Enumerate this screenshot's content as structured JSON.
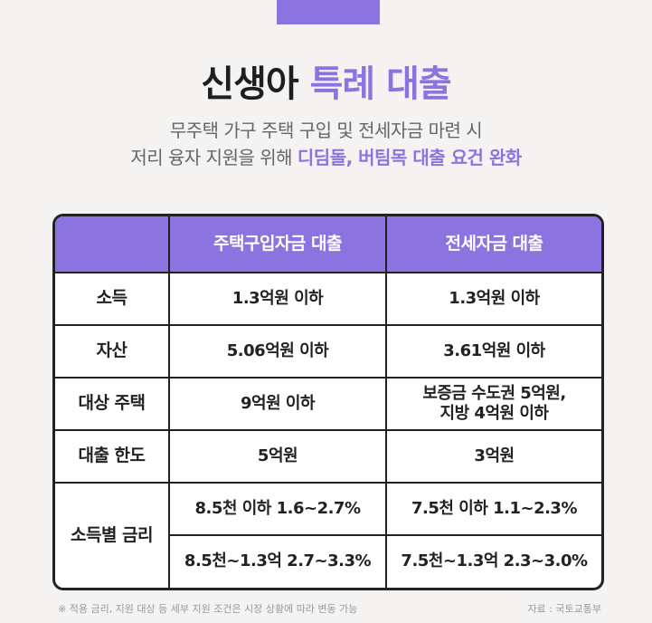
{
  "title": {
    "main": "신생아 ",
    "accent": "특례 대출"
  },
  "subtitle": {
    "line1": "무주택 가구 주택 구입 및 전세자금 마련 시",
    "line2_plain": "저리 융자 지원을 위해 ",
    "line2_accent": "디딤돌, 버팀목 대출 요건 완화"
  },
  "table": {
    "headers": [
      "",
      "주택구입자금 대출",
      "전세자금 대출"
    ],
    "rows": [
      {
        "label": "소득",
        "purchase": "1.3억원 이하",
        "jeonse": "1.3억원 이하"
      },
      {
        "label": "자산",
        "purchase": "5.06억원 이하",
        "jeonse": "3.61억원 이하"
      },
      {
        "label": "대상 주택",
        "purchase": "9억원 이하",
        "jeonse": "보증금 수도권 5억원,\n지방 4억원 이하"
      },
      {
        "label": "대출 한도",
        "purchase": "5억원",
        "jeonse": "3억원"
      }
    ],
    "rate": {
      "label": "소득별 금리",
      "purchase": [
        "8.5천 이하 1.6~2.7%",
        "8.5천~1.3억 2.7~3.3%"
      ],
      "jeonse": [
        "7.5천 이하 1.1~2.3%",
        "7.5천~1.3억 2.3~3.0%"
      ]
    }
  },
  "footnote": "※ 적용 금리, 지원 대상 등 세부 지원 조건은 시장 상황에 따라 변동 가능",
  "source": "자료 : 국토교통부",
  "colors": {
    "accent": "#8b74e0",
    "border": "#222222"
  }
}
